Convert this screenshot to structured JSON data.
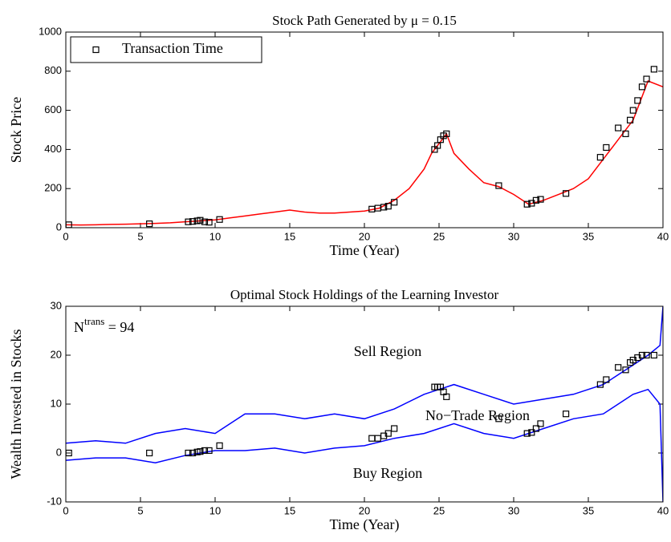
{
  "chart_data": [
    {
      "type": "line",
      "title": "Stock Path Generated by μ = 0.15",
      "x_label": "Time (Year)",
      "y_label": "Stock Price",
      "xlim": [
        0,
        40
      ],
      "xticks": [
        0,
        5,
        10,
        15,
        20,
        25,
        30,
        35,
        40
      ],
      "ylim": [
        0,
        1000
      ],
      "yticks": [
        0,
        200,
        400,
        600,
        800,
        1000
      ],
      "legend": "upper-left",
      "series": [
        {
          "color": "#ff0000",
          "marker": "none",
          "x": [
            0,
            1,
            2,
            3,
            4,
            5,
            6,
            7,
            8,
            9,
            10,
            11,
            12,
            13,
            14,
            15,
            16,
            17,
            18,
            19,
            20,
            21,
            22,
            23,
            24,
            24.5,
            25,
            25.5,
            26,
            27,
            28,
            29,
            30,
            31,
            32,
            33,
            34,
            35,
            36,
            37,
            38,
            39,
            40
          ],
          "values": [
            15,
            14,
            15,
            17,
            18,
            20,
            22,
            25,
            30,
            35,
            40,
            50,
            60,
            70,
            80,
            90,
            80,
            75,
            75,
            80,
            85,
            100,
            140,
            200,
            300,
            380,
            430,
            480,
            380,
            300,
            230,
            210,
            170,
            120,
            140,
            170,
            200,
            250,
            350,
            450,
            550,
            750,
            720
          ]
        },
        {
          "name": "Transaction Time",
          "color": "#000000",
          "marker": "square",
          "x": [
            0.2,
            5.6,
            8.2,
            8.5,
            8.8,
            9.0,
            9.3,
            9.6,
            10.3,
            20.5,
            20.9,
            21.3,
            21.6,
            22,
            24.7,
            24.9,
            25.1,
            25.3,
            25.5,
            29,
            30.9,
            31.2,
            31.5,
            31.8,
            33.5,
            35.8,
            36.2,
            37,
            37.5,
            37.8,
            38,
            38.3,
            38.6,
            38.9,
            39.4
          ],
          "values": [
            15,
            20,
            30,
            32,
            35,
            38,
            30,
            28,
            42,
            95,
            100,
            105,
            110,
            130,
            400,
            420,
            450,
            470,
            480,
            215,
            120,
            125,
            140,
            145,
            175,
            360,
            410,
            510,
            480,
            550,
            600,
            650,
            720,
            760,
            810
          ]
        }
      ]
    },
    {
      "type": "line",
      "title": "Optimal Stock Holdings of the Learning Investor",
      "x_label": "Time (Year)",
      "y_label": "Wealth Invested in Stocks",
      "xlim": [
        0,
        40
      ],
      "xticks": [
        0,
        5,
        10,
        15,
        20,
        25,
        30,
        35,
        40
      ],
      "ylim": [
        -10,
        30
      ],
      "yticks": [
        -10,
        0,
        10,
        20,
        30
      ],
      "annotations": [
        {
          "parts": [
            "N",
            "trans",
            " = 94"
          ]
        },
        {
          "parts": [
            "Sell Region"
          ]
        },
        {
          "parts": [
            "No−Trade Region"
          ]
        },
        {
          "parts": [
            "Buy Region"
          ]
        }
      ],
      "series": [
        {
          "color": "#0000ff",
          "marker": "none",
          "x": [
            0,
            2,
            4,
            6,
            8,
            10,
            12,
            14,
            16,
            18,
            20,
            22,
            24,
            25,
            26,
            28,
            30,
            32,
            34,
            36,
            37,
            38,
            39,
            39.8,
            40
          ],
          "values": [
            2,
            2.5,
            2,
            4,
            5,
            4,
            8,
            8,
            7,
            8,
            7,
            9,
            12,
            13,
            14,
            12,
            10,
            11,
            12,
            14,
            16,
            18,
            20,
            22,
            30
          ]
        },
        {
          "color": "#0000ff",
          "marker": "none",
          "x": [
            0,
            2,
            4,
            6,
            8,
            10,
            12,
            14,
            16,
            18,
            20,
            22,
            24,
            26,
            28,
            30,
            32,
            34,
            36,
            38,
            39,
            39.8,
            40
          ],
          "values": [
            -1.5,
            -1,
            -1,
            -2,
            -0.5,
            0.5,
            0.5,
            1,
            0,
            1,
            1.5,
            3,
            4,
            6,
            4,
            3,
            5,
            7,
            8,
            12,
            13,
            10,
            -10
          ]
        },
        {
          "color": "#000000",
          "marker": "square",
          "x": [
            0.2,
            5.6,
            8.2,
            8.5,
            8.8,
            9.0,
            9.3,
            9.6,
            10.3,
            20.5,
            20.9,
            21.3,
            21.6,
            22,
            24.7,
            24.9,
            25.1,
            25.3,
            25.5,
            29,
            30.9,
            31.2,
            31.5,
            31.8,
            33.5,
            35.8,
            36.2,
            37,
            37.5,
            37.8,
            38,
            38.3,
            38.6,
            38.9,
            39.4
          ],
          "values": [
            0,
            0,
            0,
            0,
            0.2,
            0.3,
            0.5,
            0.5,
            1.5,
            3,
            3,
            3.5,
            4,
            5,
            13.5,
            13.5,
            13.5,
            12.5,
            11.5,
            7,
            4,
            4.2,
            5,
            6,
            8,
            14,
            15,
            17.5,
            17,
            18.5,
            19,
            19.5,
            20,
            20,
            20
          ]
        }
      ]
    }
  ]
}
